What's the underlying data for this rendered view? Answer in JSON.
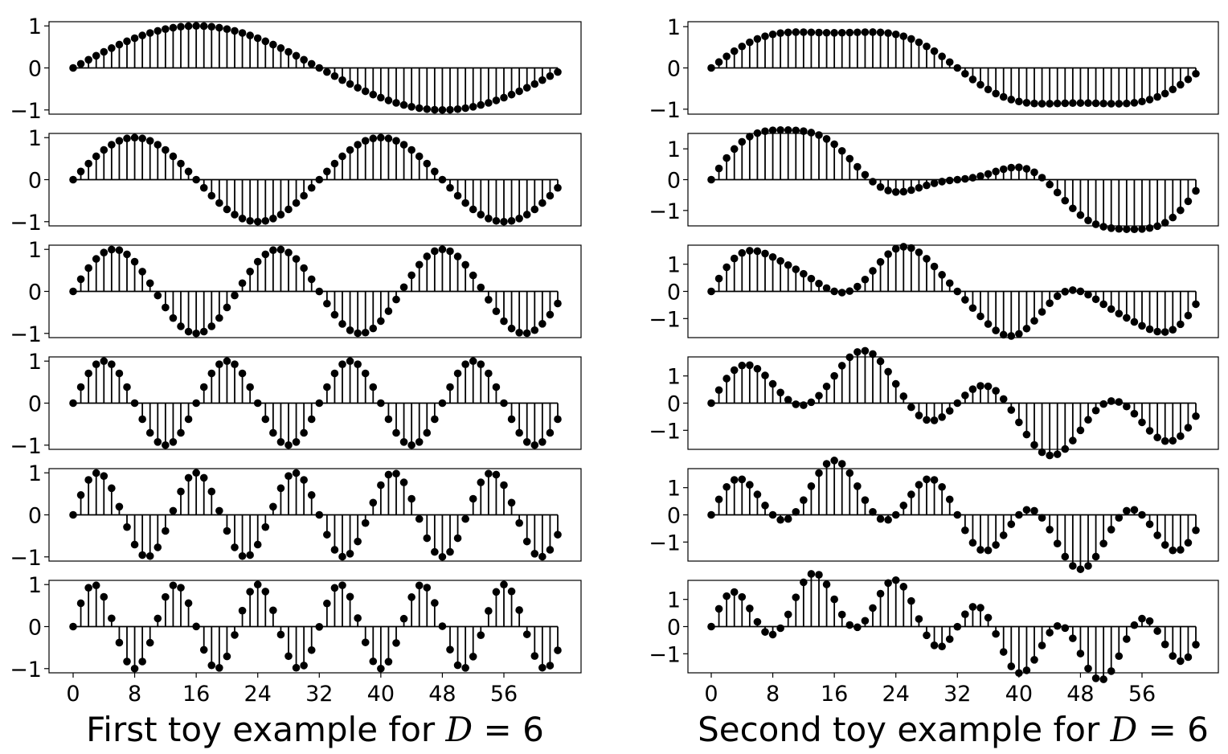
{
  "chart_data": [
    {
      "type": "stem",
      "caption": {
        "text": "First toy example for ",
        "var": "D",
        "rest": " = 6"
      },
      "x": {
        "start": 0,
        "end": 63,
        "step": 1
      },
      "x_ticks": [
        0,
        8,
        16,
        24,
        32,
        40,
        48,
        56
      ],
      "color": "#000000",
      "panels": [
        {
          "yticks": [
            -1,
            0,
            1
          ],
          "ylim": [
            -1.1,
            1.1
          ],
          "formula": {
            "components": [
              {
                "amplitude": 1,
                "period": 64
              }
            ]
          }
        },
        {
          "yticks": [
            -1,
            0,
            1
          ],
          "ylim": [
            -1.1,
            1.1
          ],
          "formula": {
            "components": [
              {
                "amplitude": 1,
                "period": 32
              }
            ]
          }
        },
        {
          "yticks": [
            -1,
            0,
            1
          ],
          "ylim": [
            -1.1,
            1.1
          ],
          "formula": {
            "components": [
              {
                "amplitude": 1,
                "period": 21.33
              }
            ]
          }
        },
        {
          "yticks": [
            -1,
            0,
            1
          ],
          "ylim": [
            -1.1,
            1.1
          ],
          "formula": {
            "components": [
              {
                "amplitude": 1,
                "period": 16
              }
            ]
          }
        },
        {
          "yticks": [
            -1,
            0,
            1
          ],
          "ylim": [
            -1.1,
            1.1
          ],
          "formula": {
            "components": [
              {
                "amplitude": 1,
                "period": 12.8
              }
            ]
          }
        },
        {
          "yticks": [
            -1,
            0,
            1
          ],
          "ylim": [
            -1.1,
            1.1
          ],
          "formula": {
            "components": [
              {
                "amplitude": 1,
                "period": 10.67
              }
            ]
          }
        }
      ]
    },
    {
      "type": "stem",
      "caption": {
        "text": "Second toy example for ",
        "var": "D",
        "rest": " = 6"
      },
      "x": {
        "start": 0,
        "end": 63,
        "step": 1
      },
      "x_ticks": [
        0,
        8,
        16,
        24,
        32,
        40,
        48,
        56
      ],
      "color": "#000000",
      "panels": [
        {
          "yticks": [
            -1,
            0,
            1
          ],
          "ylim": [
            -1.12,
            1.12
          ],
          "formula": {
            "components": [
              {
                "amplitude": 1,
                "period": 64
              },
              {
                "amplitude": 0.15,
                "period": 21.33
              }
            ]
          }
        },
        {
          "yticks": [
            -1,
            0,
            1
          ],
          "ylim": [
            -1.5,
            1.5
          ],
          "formula": {
            "components": [
              {
                "amplitude": 1,
                "period": 64
              },
              {
                "amplitude": 1,
                "period": 32
              },
              {
                "amplitude": 0.15,
                "period": 12.8
              }
            ]
          }
        },
        {
          "yticks": [
            -1,
            0,
            1
          ],
          "ylim": [
            -1.7,
            1.7
          ],
          "formula": {
            "components": [
              {
                "amplitude": 1,
                "period": 64
              },
              {
                "amplitude": 1,
                "period": 21.33
              },
              {
                "amplitude": 0.15,
                "period": 10.67
              }
            ]
          }
        },
        {
          "yticks": [
            -1,
            0,
            1
          ],
          "ylim": [
            -1.7,
            1.7
          ],
          "formula": {
            "components": [
              {
                "amplitude": 1,
                "period": 64
              },
              {
                "amplitude": 1,
                "period": 16
              }
            ]
          }
        },
        {
          "yticks": [
            -1,
            0,
            1
          ],
          "ylim": [
            -1.7,
            1.7
          ],
          "formula": {
            "components": [
              {
                "amplitude": 1,
                "period": 64
              },
              {
                "amplitude": 1,
                "period": 12.8
              }
            ]
          }
        },
        {
          "yticks": [
            -1,
            0,
            1
          ],
          "ylim": [
            -1.7,
            1.7
          ],
          "formula": {
            "components": [
              {
                "amplitude": 1,
                "period": 64
              },
              {
                "amplitude": 1,
                "period": 10.67
              }
            ]
          }
        }
      ]
    }
  ]
}
